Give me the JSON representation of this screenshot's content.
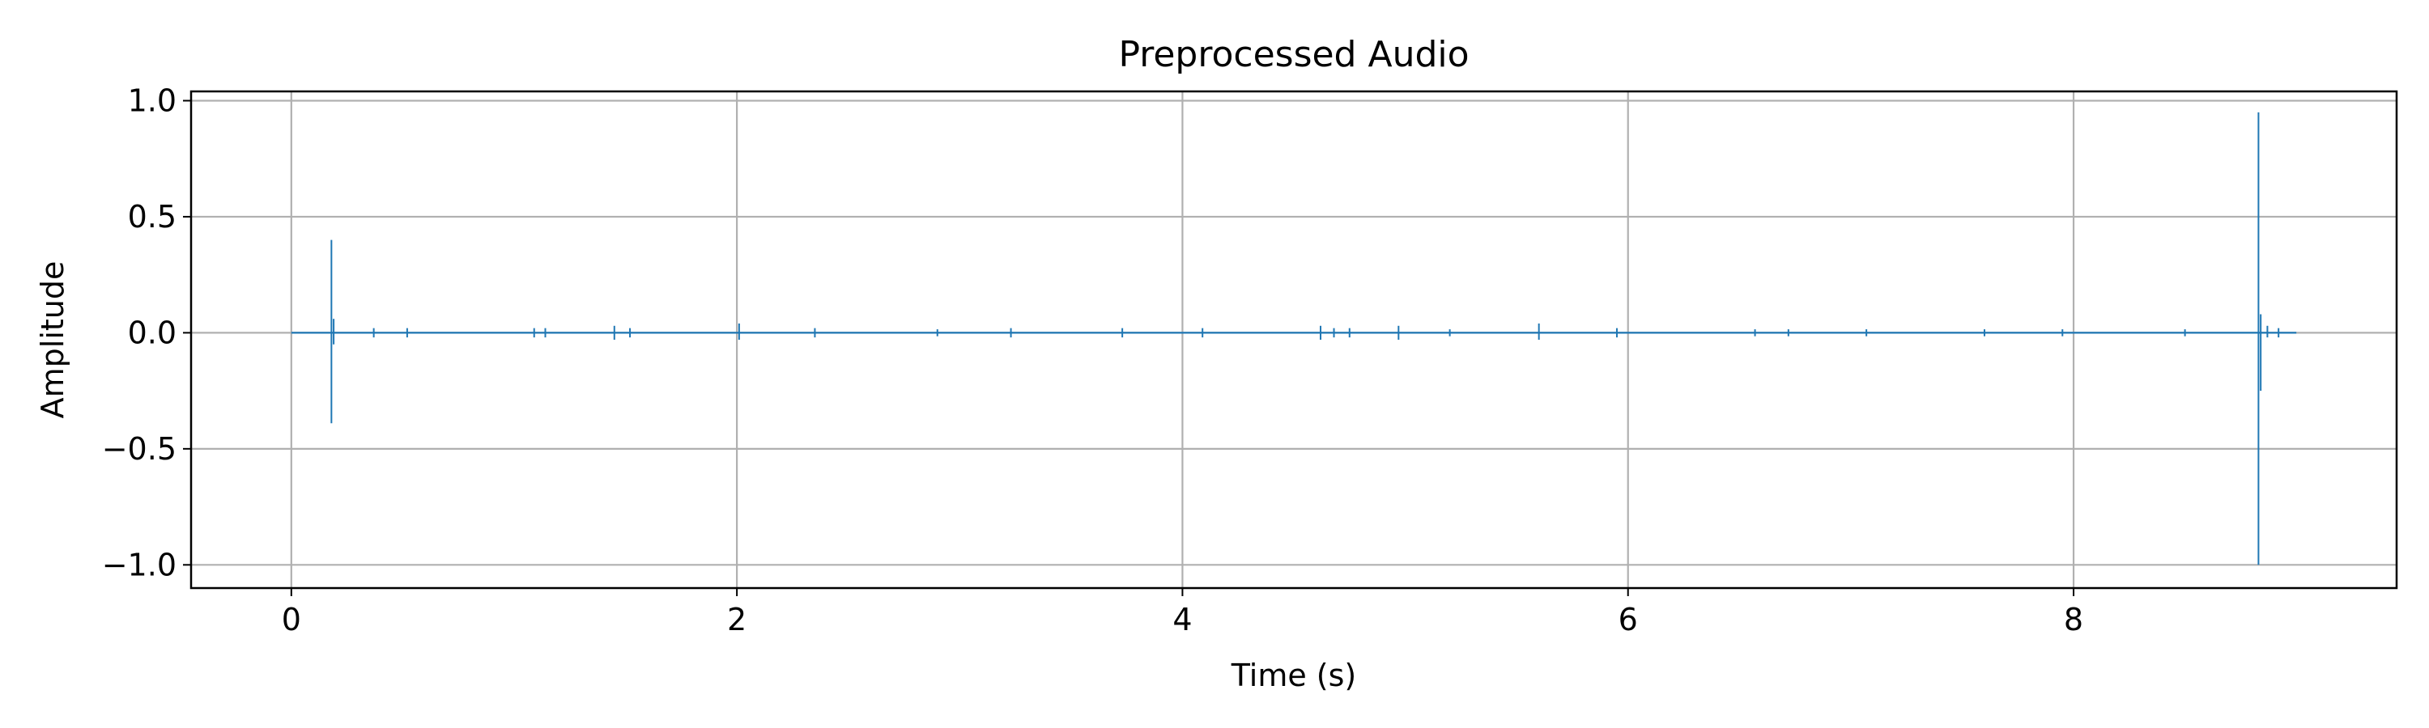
{
  "chart_data": {
    "type": "line",
    "title": "Preprocessed Audio",
    "xlabel": "Time (s)",
    "ylabel": "Amplitude",
    "xlim": [
      -0.45,
      9.45
    ],
    "ylim": [
      -1.1,
      1.04
    ],
    "xticks": [
      0,
      2,
      4,
      6,
      8
    ],
    "xtick_labels": [
      "0",
      "2",
      "4",
      "6",
      "8"
    ],
    "yticks": [
      1.0,
      0.5,
      0.0,
      -0.5,
      -1.0
    ],
    "ytick_labels": [
      "1.0",
      "0.5",
      "0.0",
      "−0.5",
      "−1.0"
    ],
    "grid": true,
    "legend": "none",
    "duration_s": 9.0,
    "baseline": 0.0,
    "series": [
      {
        "color": "#1f77b4",
        "events": [
          {
            "t": 0.18,
            "peak": 0.4,
            "trough": -0.39
          },
          {
            "t": 0.19,
            "peak": 0.06,
            "trough": -0.05
          },
          {
            "t": 0.37,
            "peak": 0.02,
            "trough": -0.02
          },
          {
            "t": 0.52,
            "peak": 0.02,
            "trough": -0.02
          },
          {
            "t": 1.09,
            "peak": 0.02,
            "trough": -0.02
          },
          {
            "t": 1.14,
            "peak": 0.02,
            "trough": -0.02
          },
          {
            "t": 1.45,
            "peak": 0.03,
            "trough": -0.03
          },
          {
            "t": 1.52,
            "peak": 0.02,
            "trough": -0.02
          },
          {
            "t": 2.01,
            "peak": 0.04,
            "trough": -0.03
          },
          {
            "t": 2.35,
            "peak": 0.02,
            "trough": -0.02
          },
          {
            "t": 2.9,
            "peak": 0.015,
            "trough": -0.015
          },
          {
            "t": 3.23,
            "peak": 0.02,
            "trough": -0.02
          },
          {
            "t": 3.73,
            "peak": 0.02,
            "trough": -0.02
          },
          {
            "t": 4.09,
            "peak": 0.02,
            "trough": -0.02
          },
          {
            "t": 4.62,
            "peak": 0.03,
            "trough": -0.03
          },
          {
            "t": 4.68,
            "peak": 0.02,
            "trough": -0.02
          },
          {
            "t": 4.75,
            "peak": 0.02,
            "trough": -0.02
          },
          {
            "t": 4.97,
            "peak": 0.03,
            "trough": -0.03
          },
          {
            "t": 5.2,
            "peak": 0.015,
            "trough": -0.015
          },
          {
            "t": 5.6,
            "peak": 0.04,
            "trough": -0.03
          },
          {
            "t": 5.95,
            "peak": 0.02,
            "trough": -0.02
          },
          {
            "t": 6.57,
            "peak": 0.015,
            "trough": -0.015
          },
          {
            "t": 6.72,
            "peak": 0.015,
            "trough": -0.015
          },
          {
            "t": 7.07,
            "peak": 0.015,
            "trough": -0.015
          },
          {
            "t": 7.6,
            "peak": 0.015,
            "trough": -0.015
          },
          {
            "t": 7.95,
            "peak": 0.015,
            "trough": -0.015
          },
          {
            "t": 8.5,
            "peak": 0.015,
            "trough": -0.015
          },
          {
            "t": 8.83,
            "peak": 0.95,
            "trough": -1.0
          },
          {
            "t": 8.84,
            "peak": 0.08,
            "trough": -0.25
          },
          {
            "t": 8.87,
            "peak": 0.03,
            "trough": -0.02
          },
          {
            "t": 8.92,
            "peak": 0.02,
            "trough": -0.02
          }
        ]
      }
    ]
  }
}
